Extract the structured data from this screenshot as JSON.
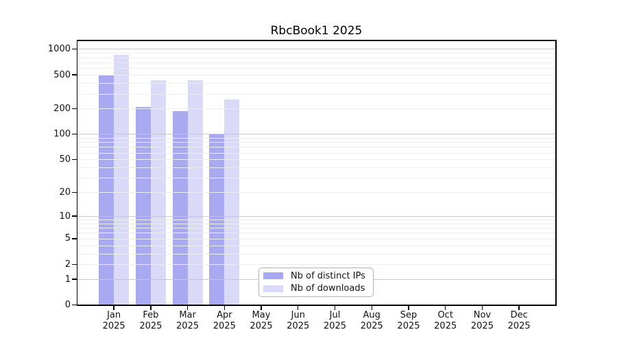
{
  "title": "RbcBook1 2025",
  "legend": {
    "items": [
      {
        "label": "Nb of distinct IPs",
        "color": "#a9a9f2"
      },
      {
        "label": "Nb of downloads",
        "color": "#dadaf8"
      }
    ]
  },
  "y_axis": {
    "tick_values": [
      1000,
      500,
      200,
      100,
      50,
      20,
      10,
      5,
      2,
      1,
      0
    ],
    "tick_labels": [
      "1000",
      "500",
      "200",
      "100",
      "50",
      "20",
      "10",
      "5",
      "2",
      "1",
      "0"
    ]
  },
  "x_axis": {
    "months": [
      "Jan",
      "Feb",
      "Mar",
      "Apr",
      "May",
      "Jun",
      "Jul",
      "Aug",
      "Sep",
      "Oct",
      "Nov",
      "Dec"
    ],
    "year": "2025"
  },
  "chart_data": {
    "type": "bar",
    "title": "RbcBook1 2025",
    "categories": [
      "Jan 2025",
      "Feb 2025",
      "Mar 2025",
      "Apr 2025",
      "May 2025",
      "Jun 2025",
      "Jul 2025",
      "Aug 2025",
      "Sep 2025",
      "Oct 2025",
      "Nov 2025",
      "Dec 2025"
    ],
    "series": [
      {
        "name": "Nb of distinct IPs",
        "color": "#a9a9f2",
        "values": [
          500,
          210,
          188,
          100,
          0,
          0,
          0,
          0,
          0,
          0,
          0,
          0
        ]
      },
      {
        "name": "Nb of downloads",
        "color": "#dadaf8",
        "values": [
          860,
          435,
          435,
          255,
          0,
          0,
          0,
          0,
          0,
          0,
          0,
          0
        ]
      }
    ],
    "yscale": "log1p",
    "ylim": [
      0,
      1000
    ],
    "y_ticks": [
      0,
      1,
      2,
      5,
      10,
      20,
      50,
      100,
      200,
      500,
      1000
    ],
    "grid": true,
    "legend_position": "lower center"
  },
  "colors": {
    "major_grid": "#c6c6c6",
    "minor_grid": "#ededed",
    "axis": "#000000",
    "legend_border": "#b3b3b3"
  }
}
